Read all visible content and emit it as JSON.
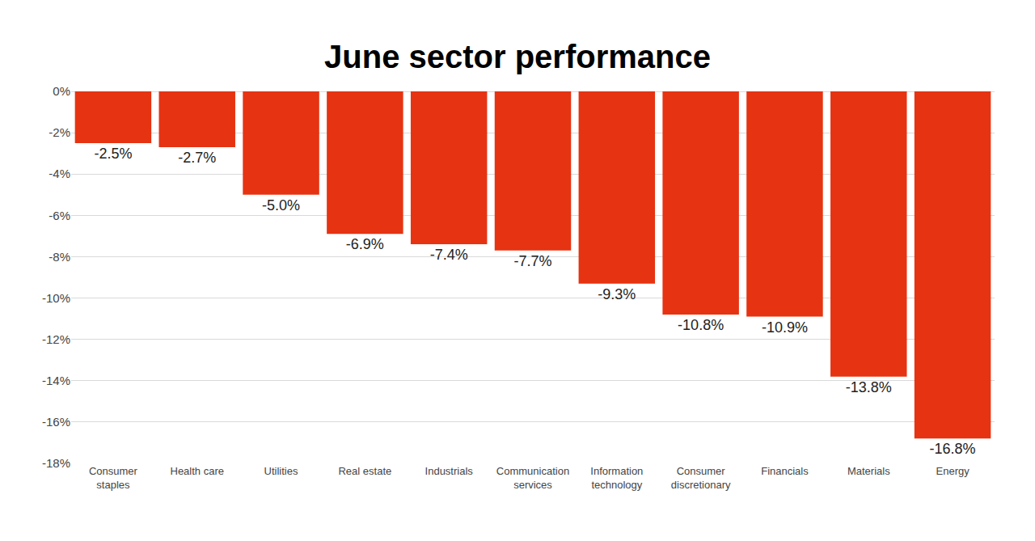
{
  "chart_data": {
    "type": "bar",
    "title": "June sector performance",
    "categories": [
      "Consumer staples",
      "Health care",
      "Utilities",
      "Real estate",
      "Industrials",
      "Communication services",
      "Information technology",
      "Consumer discretionary",
      "Financials",
      "Materials",
      "Energy"
    ],
    "values": [
      -2.5,
      -2.7,
      -5.0,
      -6.9,
      -7.4,
      -7.7,
      -9.3,
      -10.8,
      -10.9,
      -13.8,
      -16.8
    ],
    "value_labels": [
      "-2.5%",
      "-2.7%",
      "-5.0%",
      "-6.9%",
      "-7.4%",
      "-7.7%",
      "-9.3%",
      "-10.8%",
      "-10.9%",
      "-13.8%",
      "-16.8%"
    ],
    "color": "#e63312",
    "ylim": [
      -18,
      0
    ],
    "yticks": [
      {
        "value": 0,
        "label": "0%"
      },
      {
        "value": -2,
        "label": "-2%"
      },
      {
        "value": -4,
        "label": "-4%"
      },
      {
        "value": -6,
        "label": "-6%"
      },
      {
        "value": -8,
        "label": "-8%"
      },
      {
        "value": -10,
        "label": "-10%"
      },
      {
        "value": -12,
        "label": "-12%"
      },
      {
        "value": -14,
        "label": "-14%"
      },
      {
        "value": -16,
        "label": "-16%"
      },
      {
        "value": -18,
        "label": "-18%"
      }
    ],
    "grid": true,
    "data_labels": true
  }
}
